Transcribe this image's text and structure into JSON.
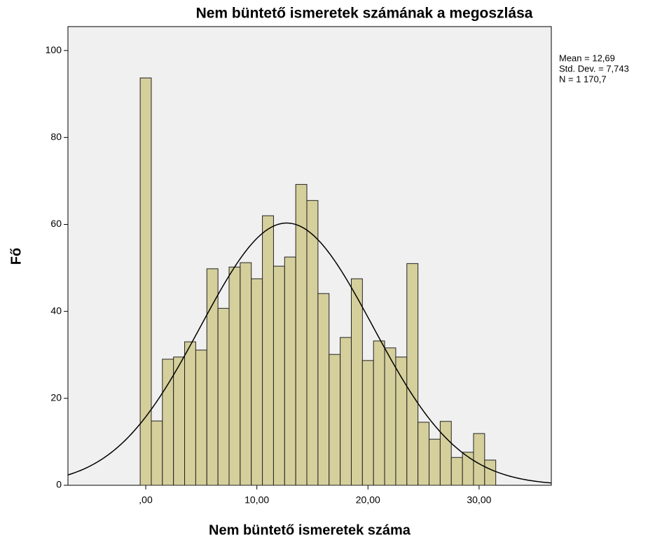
{
  "chart_data": {
    "type": "histogram",
    "title": "Nem büntető ismeretek számának a megoszlása",
    "x_label": "Nem büntető ismeretek száma",
    "y_label": "Fő",
    "bins": [
      -0.5,
      0.5,
      1.5,
      2.5,
      3.5,
      4.5,
      5.5,
      6.5,
      7.5,
      8.5,
      9.5,
      10.5,
      11.5,
      12.5,
      13.5,
      14.5,
      15.5,
      16.5,
      17.5,
      18.5,
      19.5,
      20.5,
      21.5,
      22.5,
      23.5,
      24.5,
      25.5,
      26.5,
      27.5,
      28.5,
      29.5,
      30.5,
      31.5
    ],
    "values": [
      93.7,
      14.8,
      29,
      29.5,
      33,
      31.1,
      49.8,
      40.7,
      50.2,
      51.2,
      47.5,
      62,
      50.4,
      52.5,
      69.2,
      65.5,
      44.1,
      30.1,
      34,
      47.5,
      28.7,
      33.2,
      31.6,
      29.5,
      51,
      14.5,
      10.6,
      14.7,
      6.4,
      7.6,
      11.9,
      5.8
    ],
    "color": "#d5cf9c",
    "normal_curve": {
      "mean": 12.69,
      "sd": 7.743,
      "n": 1170.7
    },
    "annotations": [
      "Mean = 12,69",
      "Std. Dev. = 7,743",
      "N = 1 170,7"
    ],
    "xlim": [
      -7,
      36.5
    ],
    "ylim": [
      0,
      105.5
    ],
    "xticks": [
      {
        "value": 0,
        "label": ",00"
      },
      {
        "value": 10,
        "label": "10,00"
      },
      {
        "value": 20,
        "label": "20,00"
      },
      {
        "value": 30,
        "label": "30,00"
      }
    ],
    "yticks": [
      0,
      20,
      40,
      60,
      80,
      100
    ]
  }
}
